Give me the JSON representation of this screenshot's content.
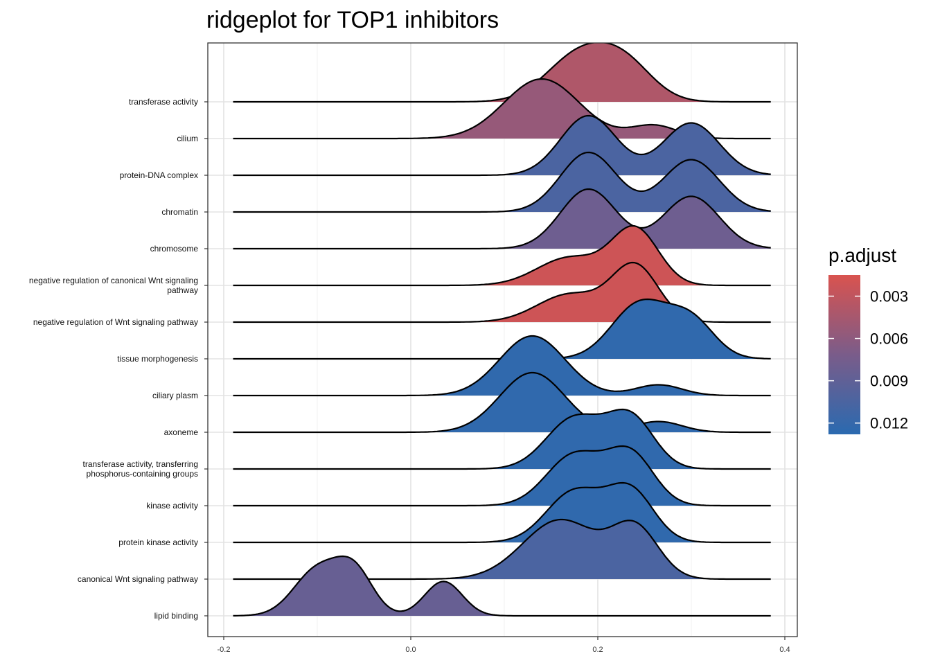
{
  "chart_data": {
    "type": "ridgeline",
    "title": "ridgeplot for TOP1 inhibitors",
    "xlabel": "",
    "ylabel": "",
    "xlim": [
      -0.2,
      0.4
    ],
    "x_ticks": [
      "-0.2",
      "0.0",
      "0.2",
      "0.4"
    ],
    "x_tick_values": [
      -0.2,
      0.0,
      0.2,
      0.4
    ],
    "grid": true,
    "legend": {
      "title": "p.adjust",
      "position": "right",
      "ticks": [
        "0.003",
        "0.006",
        "0.009",
        "0.012"
      ],
      "tick_values": [
        0.003,
        0.006,
        0.009,
        0.012
      ],
      "range": [
        0.0015,
        0.0128
      ],
      "color_low": "#d9534f",
      "color_high": "#2a6ab0"
    },
    "categories": [
      {
        "label": "transferase activity",
        "p_adjust": 0.004,
        "peaks": [
          [
            0.18,
            0.035,
            1.0
          ],
          [
            0.23,
            0.03,
            0.72
          ]
        ]
      },
      {
        "label": "cilium",
        "p_adjust": 0.0055,
        "peaks": [
          [
            0.14,
            0.04,
            1.0
          ],
          [
            0.26,
            0.025,
            0.22
          ]
        ]
      },
      {
        "label": "protein-DNA complex",
        "p_adjust": 0.0105,
        "peaks": [
          [
            0.19,
            0.03,
            0.82
          ],
          [
            0.3,
            0.03,
            0.72
          ]
        ]
      },
      {
        "label": "chromatin",
        "p_adjust": 0.0105,
        "peaks": [
          [
            0.19,
            0.03,
            0.82
          ],
          [
            0.3,
            0.03,
            0.72
          ]
        ]
      },
      {
        "label": "chromosome",
        "p_adjust": 0.008,
        "peaks": [
          [
            0.19,
            0.03,
            0.82
          ],
          [
            0.3,
            0.03,
            0.72
          ]
        ]
      },
      {
        "label": "negative regulation of canonical Wnt signaling\npathway",
        "p_adjust": 0.0022,
        "peaks": [
          [
            0.17,
            0.035,
            0.5
          ],
          [
            0.24,
            0.025,
            1.0
          ]
        ]
      },
      {
        "label": "negative regulation of Wnt signaling pathway",
        "p_adjust": 0.0022,
        "peaks": [
          [
            0.17,
            0.035,
            0.5
          ],
          [
            0.24,
            0.025,
            1.0
          ]
        ]
      },
      {
        "label": "tissue morphogenesis",
        "p_adjust": 0.0124,
        "peaks": [
          [
            0.245,
            0.03,
            0.9
          ],
          [
            0.3,
            0.025,
            0.6
          ]
        ]
      },
      {
        "label": "ciliary plasm",
        "p_adjust": 0.0124,
        "peaks": [
          [
            0.13,
            0.035,
            1.0
          ],
          [
            0.265,
            0.025,
            0.18
          ]
        ]
      },
      {
        "label": "axoneme",
        "p_adjust": 0.0124,
        "peaks": [
          [
            0.13,
            0.035,
            1.0
          ],
          [
            0.265,
            0.025,
            0.18
          ]
        ]
      },
      {
        "label": "transferase activity, transferring\nphosphorus-containing groups",
        "p_adjust": 0.0124,
        "peaks": [
          [
            0.175,
            0.03,
            0.85
          ],
          [
            0.235,
            0.025,
            0.85
          ]
        ]
      },
      {
        "label": "kinase activity",
        "p_adjust": 0.0124,
        "peaks": [
          [
            0.175,
            0.03,
            0.85
          ],
          [
            0.235,
            0.025,
            0.85
          ]
        ]
      },
      {
        "label": "protein kinase activity",
        "p_adjust": 0.0124,
        "peaks": [
          [
            0.175,
            0.03,
            0.85
          ],
          [
            0.235,
            0.025,
            0.85
          ]
        ]
      },
      {
        "label": "canonical Wnt signaling pathway",
        "p_adjust": 0.0105,
        "peaks": [
          [
            0.16,
            0.04,
            0.72
          ],
          [
            0.24,
            0.025,
            0.6
          ]
        ]
      },
      {
        "label": "lipid binding",
        "p_adjust": 0.0085,
        "peaks": [
          [
            -0.1,
            0.025,
            0.6
          ],
          [
            -0.06,
            0.02,
            0.55
          ],
          [
            0.035,
            0.02,
            0.45
          ]
        ]
      }
    ]
  }
}
